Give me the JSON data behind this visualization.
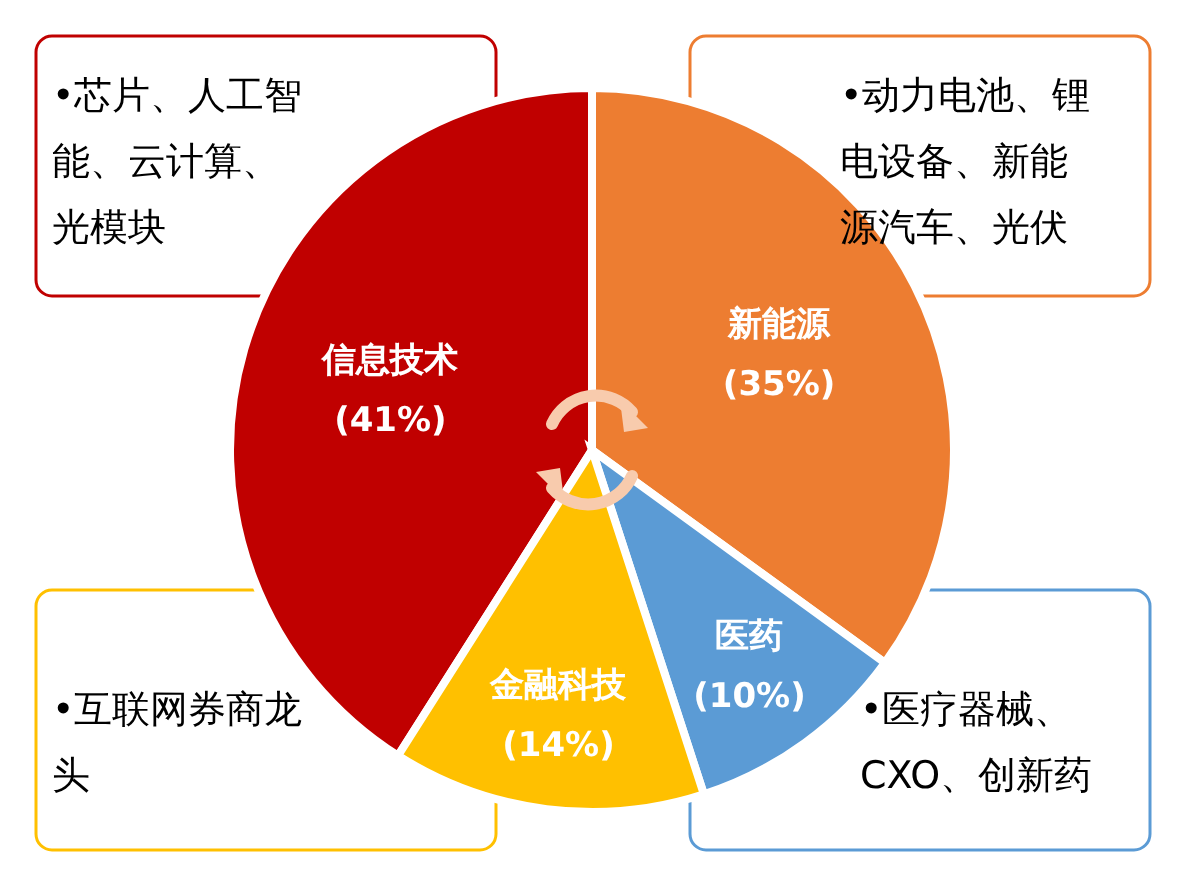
{
  "chart_data": {
    "type": "pie",
    "values": [
      41,
      35,
      14,
      10
    ],
    "categories": [
      "信息技术",
      "新能源",
      "金融科技",
      "医药"
    ],
    "value_labels": [
      "(41%)",
      "(35%)",
      "(14%)",
      "(10%)"
    ],
    "colors": [
      "#c00000",
      "#ed7d31",
      "#ffc000",
      "#5b9bd5"
    ],
    "annotations": [
      "•芯片、人工智能、云计算、光模块",
      "•动力电池、锂电设备、新能源汽车、光伏",
      "•互联网券商龙头",
      "•医疗器械、CXO、创新药"
    ]
  }
}
